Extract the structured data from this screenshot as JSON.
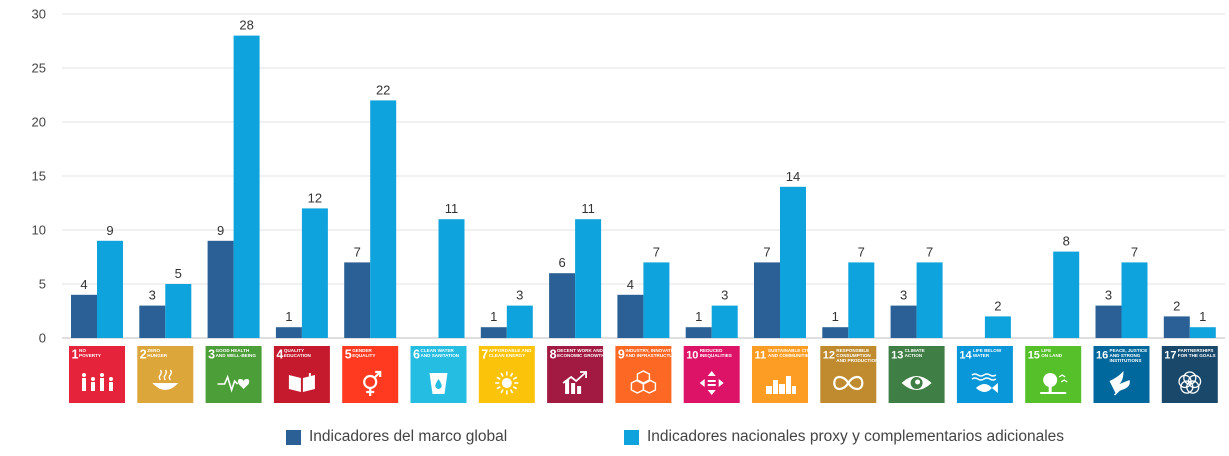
{
  "chart_data": {
    "type": "bar",
    "title": "",
    "xlabel": "",
    "ylabel": "",
    "ylim": [
      0,
      30
    ],
    "yticks": [
      0,
      5,
      10,
      15,
      20,
      25,
      30
    ],
    "grid": true,
    "legend_position": "bottom",
    "categories": [
      {
        "num": "1",
        "lines": [
          "NO",
          "POVERTY"
        ],
        "color": "#e5243b",
        "icon": "family-icon"
      },
      {
        "num": "2",
        "lines": [
          "ZERO",
          "HUNGER"
        ],
        "color": "#dda63a",
        "icon": "bowl-icon"
      },
      {
        "num": "3",
        "lines": [
          "GOOD HEALTH",
          "AND WELL-BEING"
        ],
        "color": "#4c9f38",
        "icon": "heartbeat-icon"
      },
      {
        "num": "4",
        "lines": [
          "QUALITY",
          "EDUCATION"
        ],
        "color": "#c5192d",
        "icon": "book-icon"
      },
      {
        "num": "5",
        "lines": [
          "GENDER",
          "EQUALITY"
        ],
        "color": "#ff3a21",
        "icon": "gender-icon"
      },
      {
        "num": "6",
        "lines": [
          "CLEAN WATER",
          "AND SANITATION"
        ],
        "color": "#26bde2",
        "icon": "water-glass-icon"
      },
      {
        "num": "7",
        "lines": [
          "AFFORDABLE AND",
          "CLEAN ENERGY"
        ],
        "color": "#fcc30b",
        "icon": "sun-icon"
      },
      {
        "num": "8",
        "lines": [
          "DECENT WORK AND",
          "ECONOMIC GROWTH"
        ],
        "color": "#a21942",
        "icon": "growth-chart-icon"
      },
      {
        "num": "9",
        "lines": [
          "INDUSTRY, INNOVATION",
          "AND INFRASTRUCTURE"
        ],
        "color": "#fd6925",
        "icon": "cubes-icon"
      },
      {
        "num": "10",
        "lines": [
          "REDUCED",
          "INEQUALITIES"
        ],
        "color": "#dd1367",
        "icon": "equality-arrows-icon"
      },
      {
        "num": "11",
        "lines": [
          "SUSTAINABLE CITIES",
          "AND COMMUNITIES"
        ],
        "color": "#fd9d24",
        "icon": "city-icon"
      },
      {
        "num": "12",
        "lines": [
          "RESPONSIBLE",
          "CONSUMPTION",
          "AND PRODUCTION"
        ],
        "color": "#bf8b2e",
        "icon": "infinity-icon"
      },
      {
        "num": "13",
        "lines": [
          "CLIMATE",
          "ACTION"
        ],
        "color": "#3f7e44",
        "icon": "eye-globe-icon"
      },
      {
        "num": "14",
        "lines": [
          "LIFE BELOW",
          "WATER"
        ],
        "color": "#0a97d9",
        "icon": "fish-icon"
      },
      {
        "num": "15",
        "lines": [
          "LIFE",
          "ON LAND"
        ],
        "color": "#56c02b",
        "icon": "tree-icon"
      },
      {
        "num": "16",
        "lines": [
          "PEACE, JUSTICE",
          "AND STRONG",
          "INSTITUTIONS"
        ],
        "color": "#00689d",
        "icon": "dove-icon"
      },
      {
        "num": "17",
        "lines": [
          "PARTNERSHIPS",
          "FOR THE GOALS"
        ],
        "color": "#19486a",
        "icon": "rings-icon"
      }
    ],
    "series": [
      {
        "name": "Indicadores del marco global",
        "color": "#2a6096",
        "values": [
          4,
          3,
          9,
          1,
          7,
          null,
          1,
          6,
          4,
          1,
          7,
          1,
          3,
          null,
          null,
          3,
          2
        ]
      },
      {
        "name": "Indicadores nacionales proxy  y complementarios adicionales",
        "color": "#0ea3dc",
        "values": [
          9,
          5,
          28,
          12,
          22,
          11,
          3,
          11,
          7,
          3,
          14,
          7,
          7,
          2,
          8,
          7,
          1
        ]
      }
    ]
  }
}
